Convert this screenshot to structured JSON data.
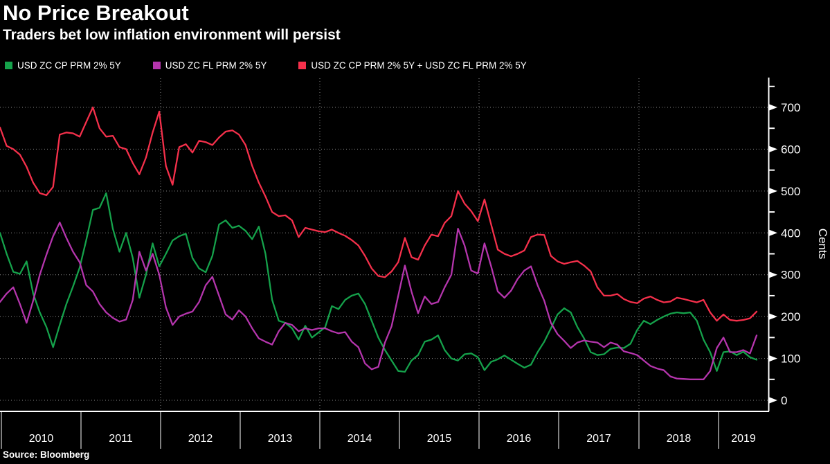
{
  "header": {
    "title": "No Price Breakout",
    "subtitle": "Traders bet low inflation environment will persist"
  },
  "source_line": "Source: Bloomberg",
  "colors": {
    "background": "#000000",
    "text": "#ffffff",
    "grid": "#8a8a8a",
    "axis": "#ffffff",
    "green": "#15a24b",
    "magenta": "#b535ad",
    "red": "#f5304b"
  },
  "legend": [
    {
      "label": "USD ZC CP PRM 2% 5Y",
      "color": "#15a24b"
    },
    {
      "label": "USD ZC FL PRM 2% 5Y",
      "color": "#b535ad"
    },
    {
      "label": "USD ZC CP PRM 2% 5Y + USD ZC FL PRM 2% 5Y",
      "color": "#f5304b"
    }
  ],
  "chart_data": {
    "type": "line",
    "title": "No Price Breakout",
    "subtitle": "Traders bet low inflation environment will persist",
    "ylabel": "Cents",
    "xlabel": "",
    "x_unit": "monthly",
    "x_start": "2009-12",
    "x_end": "2019-06",
    "x_tick_years": [
      "2010",
      "2011",
      "2012",
      "2013",
      "2014",
      "2015",
      "2016",
      "2017",
      "2018",
      "2019"
    ],
    "ylim": [
      0,
      765
    ],
    "yticks": [
      0,
      100,
      200,
      300,
      400,
      500,
      600,
      700
    ],
    "grid": {
      "horizontal": "dotted line at every 100 cents",
      "vertical": "dotted line at even-year boundaries (2012, 2014, 2016, 2018)"
    },
    "legend_position": "top-left above plot",
    "axis_side": "right",
    "series": [
      {
        "name": "USD ZC CP PRM 2% 5Y",
        "color": "#15a24b",
        "values": [
          400,
          350,
          307,
          302,
          332,
          255,
          210,
          175,
          127,
          180,
          230,
          272,
          317,
          383,
          455,
          460,
          495,
          410,
          355,
          400,
          340,
          245,
          300,
          375,
          320,
          350,
          382,
          392,
          398,
          340,
          315,
          306,
          345,
          420,
          430,
          412,
          417,
          405,
          385,
          415,
          350,
          240,
          190,
          185,
          172,
          145,
          178,
          150,
          162,
          175,
          225,
          218,
          240,
          250,
          255,
          230,
          190,
          150,
          120,
          95,
          70,
          68,
          95,
          108,
          140,
          145,
          155,
          120,
          100,
          95,
          110,
          112,
          103,
          72,
          92,
          98,
          107,
          97,
          87,
          78,
          85,
          115,
          140,
          172,
          205,
          220,
          210,
          175,
          148,
          115,
          108,
          110,
          123,
          126,
          125,
          135,
          168,
          190,
          182,
          192,
          200,
          207,
          210,
          208,
          210,
          190,
          145,
          115,
          70,
          115,
          117,
          108,
          116,
          103,
          97
        ]
      },
      {
        "name": "USD ZC FL PRM 2% 5Y",
        "color": "#b535ad",
        "values": [
          235,
          255,
          270,
          230,
          185,
          238,
          300,
          348,
          392,
          425,
          388,
          355,
          330,
          275,
          260,
          230,
          210,
          197,
          188,
          193,
          240,
          355,
          310,
          350,
          300,
          222,
          180,
          200,
          207,
          212,
          235,
          275,
          295,
          250,
          205,
          193,
          215,
          200,
          172,
          148,
          140,
          133,
          165,
          185,
          180,
          165,
          172,
          168,
          172,
          172,
          165,
          160,
          163,
          140,
          127,
          88,
          74,
          80,
          138,
          177,
          250,
          322,
          260,
          208,
          248,
          230,
          235,
          270,
          300,
          410,
          370,
          310,
          303,
          375,
          320,
          260,
          245,
          262,
          290,
          310,
          320,
          275,
          238,
          185,
          158,
          142,
          125,
          138,
          143,
          140,
          138,
          127,
          138,
          133,
          117,
          113,
          108,
          95,
          82,
          76,
          72,
          57,
          52,
          51,
          50,
          50,
          50,
          70,
          125,
          150,
          115,
          115,
          120,
          112,
          155
        ]
      },
      {
        "name": "USD ZC CP PRM 2% 5Y + USD ZC FL PRM 2% 5Y",
        "color": "#f5304b",
        "values": [
          652,
          608,
          600,
          587,
          558,
          520,
          495,
          490,
          510,
          635,
          640,
          638,
          630,
          665,
          700,
          650,
          630,
          632,
          605,
          600,
          567,
          540,
          580,
          640,
          690,
          560,
          515,
          605,
          612,
          592,
          620,
          617,
          610,
          628,
          642,
          645,
          635,
          610,
          560,
          520,
          487,
          450,
          440,
          442,
          430,
          390,
          412,
          408,
          404,
          402,
          408,
          400,
          393,
          383,
          370,
          345,
          315,
          297,
          294,
          308,
          330,
          388,
          342,
          336,
          370,
          396,
          392,
          424,
          440,
          500,
          470,
          452,
          428,
          480,
          420,
          360,
          350,
          344,
          350,
          358,
          390,
          396,
          395,
          345,
          332,
          326,
          330,
          333,
          322,
          308,
          270,
          250,
          250,
          254,
          242,
          235,
          232,
          243,
          248,
          240,
          234,
          236,
          245,
          242,
          238,
          234,
          240,
          210,
          190,
          205,
          192,
          190,
          192,
          196,
          212
        ]
      }
    ]
  }
}
